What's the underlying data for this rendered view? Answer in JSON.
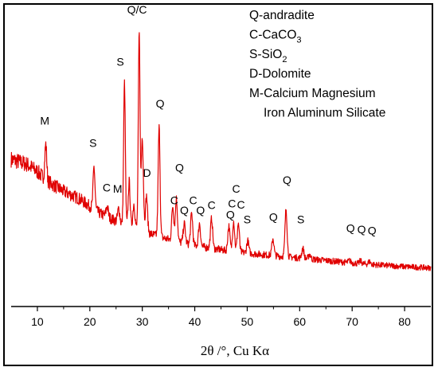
{
  "chart_data": {
    "type": "line",
    "title": "",
    "xlabel": "2θ /°, Cu Kα",
    "ylabel": "",
    "xlim": [
      5,
      85
    ],
    "ylim": [
      0,
      100
    ],
    "x_ticks": [
      10,
      20,
      30,
      40,
      50,
      60,
      70,
      80
    ],
    "grid": false,
    "legend_position": "top-right",
    "series_color": "#e00000",
    "background_points": [
      [
        5,
        49
      ],
      [
        8,
        47
      ],
      [
        10,
        44
      ],
      [
        12,
        40
      ],
      [
        15,
        36
      ],
      [
        18,
        33
      ],
      [
        20,
        30
      ],
      [
        22,
        27
      ],
      [
        24,
        25
      ],
      [
        26,
        23
      ],
      [
        28,
        21.5
      ],
      [
        30,
        20
      ],
      [
        32,
        18.5
      ],
      [
        35,
        16.5
      ],
      [
        38,
        15
      ],
      [
        40,
        14
      ],
      [
        43,
        13
      ],
      [
        46,
        12
      ],
      [
        50,
        11
      ],
      [
        55,
        10
      ],
      [
        60,
        9
      ],
      [
        65,
        8
      ],
      [
        70,
        7
      ],
      [
        75,
        6.2
      ],
      [
        80,
        5.5
      ],
      [
        85,
        5
      ]
    ],
    "peaks": [
      {
        "x": 11.6,
        "y": 55,
        "width": 0.18
      },
      {
        "x": 20.8,
        "y": 46,
        "width": 0.18
      },
      {
        "x": 23.3,
        "y": 30,
        "width": 0.2
      },
      {
        "x": 25.5,
        "y": 29,
        "width": 0.2
      },
      {
        "x": 26.6,
        "y": 80,
        "width": 0.16
      },
      {
        "x": 27.5,
        "y": 40,
        "width": 0.18
      },
      {
        "x": 28.4,
        "y": 31,
        "width": 0.2
      },
      {
        "x": 29.4,
        "y": 100,
        "width": 0.16
      },
      {
        "x": 30.0,
        "y": 58,
        "width": 0.2
      },
      {
        "x": 30.8,
        "y": 34,
        "width": 0.2
      },
      {
        "x": 33.2,
        "y": 62,
        "width": 0.18
      },
      {
        "x": 35.8,
        "y": 30,
        "width": 0.2
      },
      {
        "x": 36.5,
        "y": 33,
        "width": 0.2
      },
      {
        "x": 38.0,
        "y": 23,
        "width": 0.2
      },
      {
        "x": 39.4,
        "y": 27,
        "width": 0.2
      },
      {
        "x": 40.9,
        "y": 23,
        "width": 0.2
      },
      {
        "x": 43.2,
        "y": 25,
        "width": 0.2
      },
      {
        "x": 46.5,
        "y": 22,
        "width": 0.2
      },
      {
        "x": 47.4,
        "y": 24,
        "width": 0.2
      },
      {
        "x": 48.3,
        "y": 23,
        "width": 0.2
      },
      {
        "x": 50.1,
        "y": 16,
        "width": 0.2
      },
      {
        "x": 54.9,
        "y": 17,
        "width": 0.2
      },
      {
        "x": 57.4,
        "y": 29,
        "width": 0.2
      },
      {
        "x": 60.6,
        "y": 13,
        "width": 0.2
      },
      {
        "x": 61.9,
        "y": 10.5,
        "width": 0.2
      },
      {
        "x": 69.5,
        "y": 8,
        "width": 0.2
      },
      {
        "x": 71.6,
        "y": 7.8,
        "width": 0.2
      },
      {
        "x": 73.3,
        "y": 7.6,
        "width": 0.2
      }
    ],
    "peak_labels": [
      {
        "text": "M",
        "x": 11.4,
        "y": 63
      },
      {
        "text": "S",
        "x": 20.6,
        "y": 54
      },
      {
        "text": "C",
        "x": 23.2,
        "y": 36
      },
      {
        "text": "M",
        "x": 25.3,
        "y": 35.5
      },
      {
        "text": "S",
        "x": 25.8,
        "y": 87
      },
      {
        "text": "Q/C",
        "x": 29.0,
        "y": 108
      },
      {
        "text": "D",
        "x": 30.9,
        "y": 42
      },
      {
        "text": "Q",
        "x": 33.4,
        "y": 70
      },
      {
        "text": "Q",
        "x": 37.1,
        "y": 44
      },
      {
        "text": "C",
        "x": 36.1,
        "y": 30.8
      },
      {
        "text": "Q",
        "x": 38.0,
        "y": 26.8
      },
      {
        "text": "C",
        "x": 39.7,
        "y": 30.8
      },
      {
        "text": "Q",
        "x": 41.1,
        "y": 26.8
      },
      {
        "text": "C",
        "x": 43.2,
        "y": 28.9
      },
      {
        "text": "Q",
        "x": 46.8,
        "y": 25
      },
      {
        "text": "C",
        "x": 47.9,
        "y": 35.5
      },
      {
        "text": "C",
        "x": 47.1,
        "y": 29.5
      },
      {
        "text": "C",
        "x": 48.8,
        "y": 29.0
      },
      {
        "text": "S",
        "x": 50.0,
        "y": 23
      },
      {
        "text": "Q",
        "x": 55.0,
        "y": 24
      },
      {
        "text": "Q",
        "x": 57.6,
        "y": 39
      },
      {
        "text": "S",
        "x": 60.2,
        "y": 23
      },
      {
        "text": "Q",
        "x": 69.7,
        "y": 19.5
      },
      {
        "text": "Q",
        "x": 71.8,
        "y": 19.0
      },
      {
        "text": "Q",
        "x": 73.8,
        "y": 18.5
      }
    ],
    "legend": [
      {
        "text": "Q-andradite"
      },
      {
        "text": "C-CaCO",
        "sub": "3"
      },
      {
        "text": "S-SiO",
        "sub": "2"
      },
      {
        "text": "D-Dolomite"
      },
      {
        "text": "M-Calcium Magnesium"
      },
      {
        "text": "Iron Aluminum Silicate",
        "indent": true
      }
    ]
  }
}
